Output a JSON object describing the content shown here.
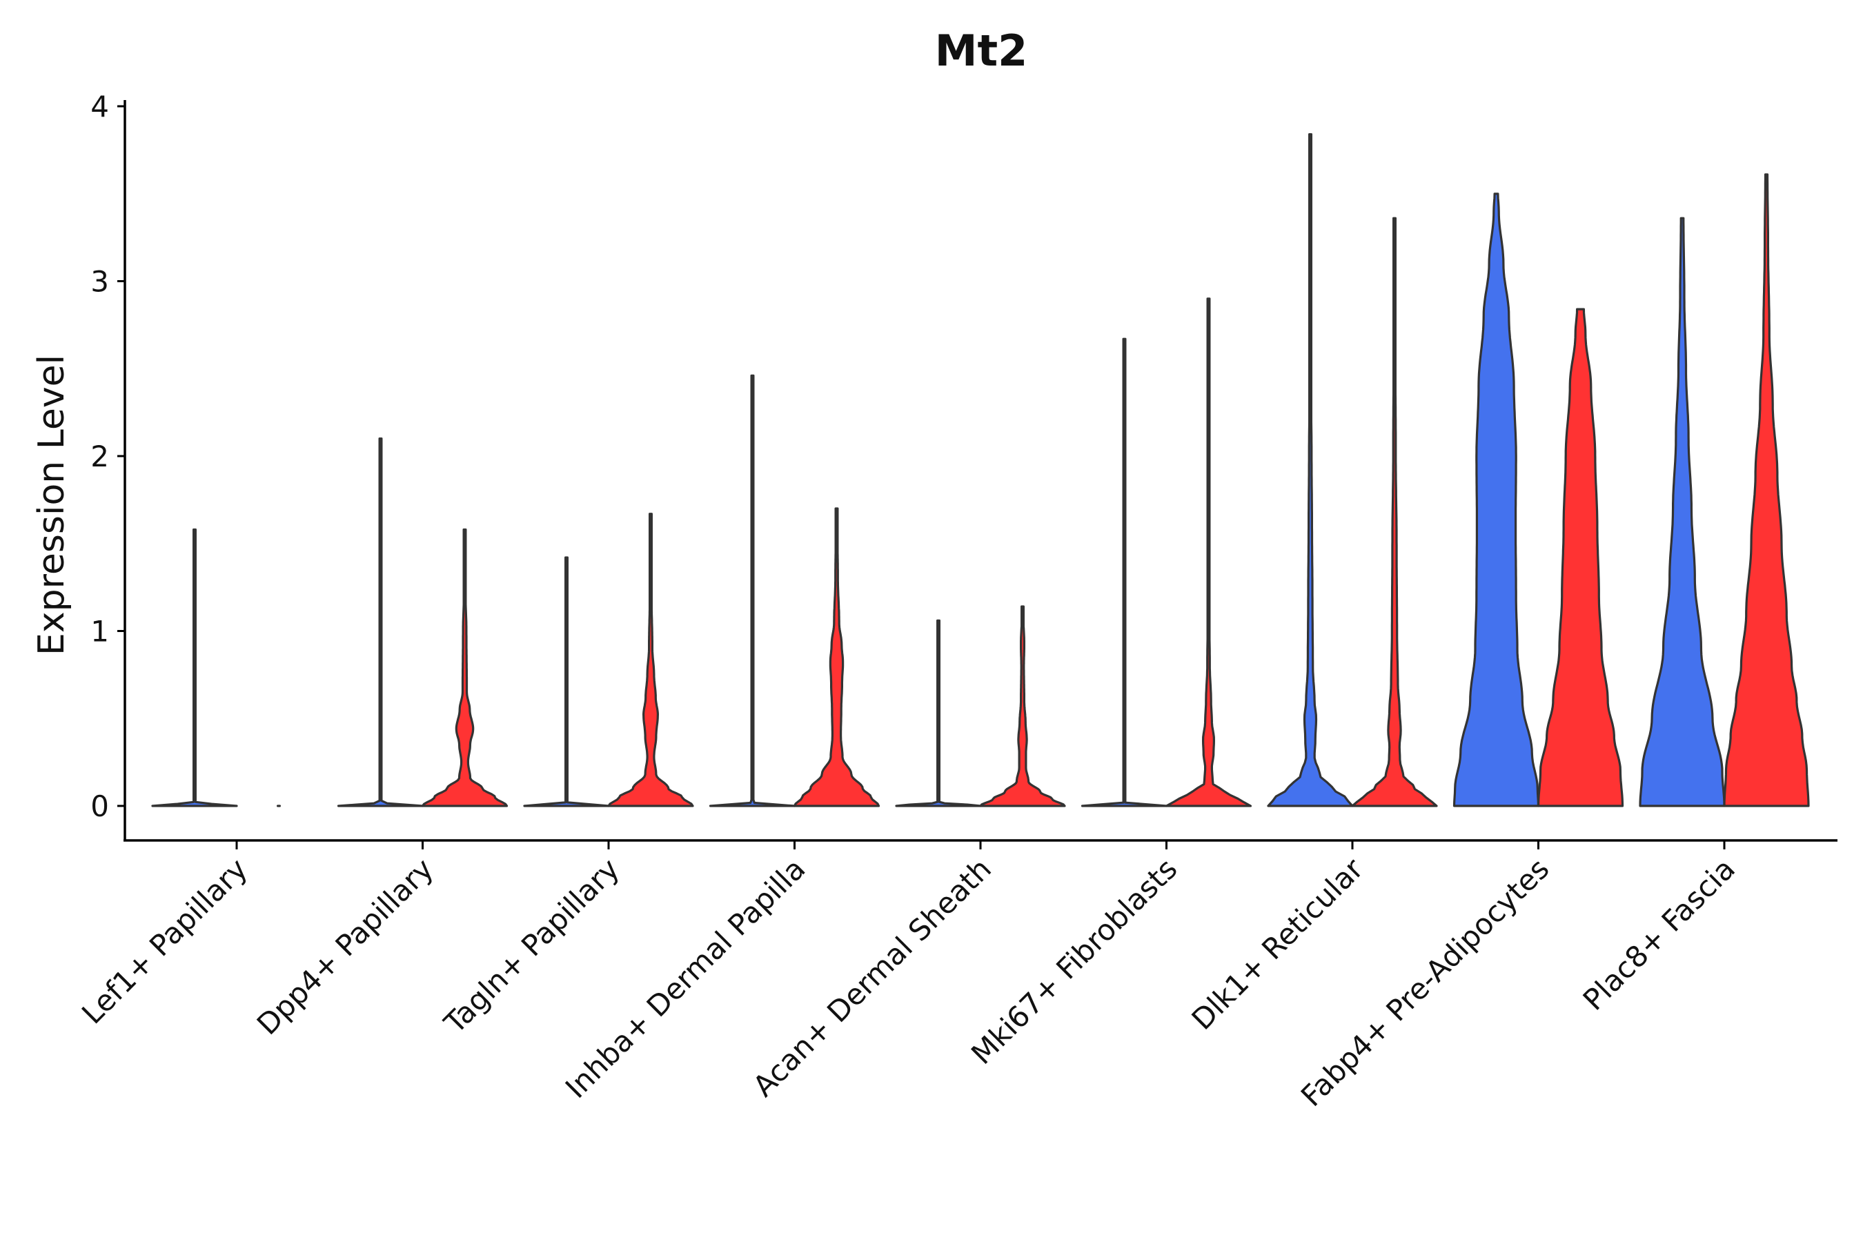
{
  "chart_data": {
    "type": "violin",
    "title": "Mt2",
    "xlabel": "",
    "ylabel": "Expression Level",
    "ylim": [
      -0.2,
      4.05
    ],
    "yticks": [
      0,
      1,
      2,
      3,
      4
    ],
    "grid": false,
    "legend": "none",
    "colors": {
      "blue": "#4472ee",
      "red": "#ff3333"
    },
    "categories": [
      "Lef1+ Papillary",
      "Dpp4+ Papillary",
      "Tagln+ Papillary",
      "Inhba+ Dermal Papilla",
      "Acan+ Dermal Sheath",
      "Mki67+ Fibroblasts",
      "Dlk1+ Reticular",
      "Fabp4+ Pre-Adipocytes",
      "Plac8+ Fascia"
    ],
    "groups": [
      {
        "category": "Lef1+ Papillary",
        "violins": [
          {
            "color": "blue",
            "max": 1.58,
            "profile": [
              [
                0,
                1.0
              ],
              [
                0.02,
                0.01
              ],
              [
                1.58,
                0.005
              ]
            ]
          },
          {
            "color": "red",
            "max": 0.0,
            "profile": [
              [
                0,
                0.02
              ]
            ]
          }
        ]
      },
      {
        "category": "Dpp4+ Papillary",
        "violins": [
          {
            "color": "blue",
            "max": 2.1,
            "profile": [
              [
                0,
                1.0
              ],
              [
                0.02,
                0.01
              ],
              [
                2.1,
                0.005
              ]
            ]
          },
          {
            "color": "red",
            "max": 1.58,
            "profile": [
              [
                0,
                1.0
              ],
              [
                0.05,
                0.72
              ],
              [
                0.1,
                0.42
              ],
              [
                0.16,
                0.13
              ],
              [
                0.25,
                0.08
              ],
              [
                0.35,
                0.13
              ],
              [
                0.44,
                0.2
              ],
              [
                0.55,
                0.12
              ],
              [
                0.65,
                0.05
              ],
              [
                1.0,
                0.04
              ],
              [
                1.2,
                0.02
              ],
              [
                1.58,
                0.005
              ]
            ]
          }
        ]
      },
      {
        "category": "Tagln+ Papillary",
        "violins": [
          {
            "color": "blue",
            "max": 1.42,
            "profile": [
              [
                0,
                1.0
              ],
              [
                0.02,
                0.01
              ],
              [
                1.42,
                0.005
              ]
            ]
          },
          {
            "color": "red",
            "max": 1.67,
            "profile": [
              [
                0,
                1.0
              ],
              [
                0.05,
                0.75
              ],
              [
                0.1,
                0.42
              ],
              [
                0.18,
                0.13
              ],
              [
                0.28,
                0.08
              ],
              [
                0.4,
                0.13
              ],
              [
                0.52,
                0.17
              ],
              [
                0.62,
                0.12
              ],
              [
                0.75,
                0.08
              ],
              [
                0.9,
                0.04
              ],
              [
                1.2,
                0.02
              ],
              [
                1.67,
                0.005
              ]
            ]
          }
        ]
      },
      {
        "category": "Inhba+ Dermal Papilla",
        "violins": [
          {
            "color": "blue",
            "max": 2.46,
            "profile": [
              [
                0,
                1.0
              ],
              [
                0.02,
                0.01
              ],
              [
                2.46,
                0.005
              ]
            ]
          },
          {
            "color": "red",
            "max": 1.7,
            "profile": [
              [
                0,
                1.0
              ],
              [
                0.05,
                0.82
              ],
              [
                0.1,
                0.62
              ],
              [
                0.18,
                0.35
              ],
              [
                0.28,
                0.14
              ],
              [
                0.4,
                0.1
              ],
              [
                0.55,
                0.11
              ],
              [
                0.7,
                0.13
              ],
              [
                0.82,
                0.15
              ],
              [
                0.92,
                0.12
              ],
              [
                1.05,
                0.06
              ],
              [
                1.3,
                0.03
              ],
              [
                1.7,
                0.005
              ]
            ]
          }
        ]
      },
      {
        "category": "Acan+ Dermal Sheath",
        "violins": [
          {
            "color": "blue",
            "max": 1.06,
            "profile": [
              [
                0,
                1.0
              ],
              [
                0.02,
                0.01
              ],
              [
                1.06,
                0.005
              ]
            ]
          },
          {
            "color": "red",
            "max": 1.14,
            "profile": [
              [
                0,
                1.0
              ],
              [
                0.04,
                0.7
              ],
              [
                0.08,
                0.42
              ],
              [
                0.14,
                0.14
              ],
              [
                0.22,
                0.08
              ],
              [
                0.3,
                0.08
              ],
              [
                0.38,
                0.1
              ],
              [
                0.48,
                0.07
              ],
              [
                0.6,
                0.04
              ],
              [
                0.8,
                0.03
              ],
              [
                0.92,
                0.04
              ],
              [
                1.14,
                0.005
              ]
            ]
          }
        ]
      },
      {
        "category": "Mki67+ Fibroblasts",
        "violins": [
          {
            "color": "blue",
            "max": 2.67,
            "profile": [
              [
                0,
                1.0
              ],
              [
                0.02,
                0.01
              ],
              [
                2.67,
                0.005
              ]
            ]
          },
          {
            "color": "red",
            "max": 2.9,
            "profile": [
              [
                0,
                1.0
              ],
              [
                0.04,
                0.7
              ],
              [
                0.08,
                0.38
              ],
              [
                0.13,
                0.1
              ],
              [
                0.22,
                0.08
              ],
              [
                0.3,
                0.12
              ],
              [
                0.38,
                0.13
              ],
              [
                0.48,
                0.08
              ],
              [
                0.6,
                0.06
              ],
              [
                0.8,
                0.03
              ],
              [
                1.2,
                0.01
              ],
              [
                2.9,
                0.005
              ]
            ]
          }
        ]
      },
      {
        "category": "Dlk1+ Reticular",
        "violins": [
          {
            "color": "blue",
            "max": 3.84,
            "profile": [
              [
                0,
                1.0
              ],
              [
                0.05,
                0.82
              ],
              [
                0.1,
                0.52
              ],
              [
                0.18,
                0.22
              ],
              [
                0.28,
                0.1
              ],
              [
                0.38,
                0.12
              ],
              [
                0.5,
                0.14
              ],
              [
                0.6,
                0.1
              ],
              [
                0.8,
                0.06
              ],
              [
                1.2,
                0.05
              ],
              [
                1.6,
                0.04
              ],
              [
                2.0,
                0.03
              ],
              [
                2.5,
                0.01
              ],
              [
                3.84,
                0.005
              ]
            ]
          },
          {
            "color": "red",
            "max": 3.36,
            "profile": [
              [
                0,
                1.0
              ],
              [
                0.05,
                0.75
              ],
              [
                0.1,
                0.48
              ],
              [
                0.18,
                0.2
              ],
              [
                0.26,
                0.13
              ],
              [
                0.34,
                0.12
              ],
              [
                0.43,
                0.15
              ],
              [
                0.55,
                0.12
              ],
              [
                0.7,
                0.08
              ],
              [
                1.0,
                0.06
              ],
              [
                1.5,
                0.05
              ],
              [
                2.0,
                0.03
              ],
              [
                2.6,
                0.02
              ],
              [
                3.36,
                0.005
              ]
            ]
          }
        ]
      },
      {
        "category": "Fabp4+ Pre-Adipocytes",
        "violins": [
          {
            "color": "blue",
            "max": 3.5,
            "profile": [
              [
                0,
                1.0
              ],
              [
                0.1,
                0.98
              ],
              [
                0.3,
                0.85
              ],
              [
                0.6,
                0.62
              ],
              [
                0.9,
                0.5
              ],
              [
                1.2,
                0.47
              ],
              [
                1.6,
                0.46
              ],
              [
                2.0,
                0.47
              ],
              [
                2.4,
                0.42
              ],
              [
                2.8,
                0.3
              ],
              [
                3.1,
                0.17
              ],
              [
                3.4,
                0.06
              ],
              [
                3.5,
                0.04
              ]
            ]
          },
          {
            "color": "red",
            "max": 2.84,
            "profile": [
              [
                0,
                1.0
              ],
              [
                0.2,
                0.95
              ],
              [
                0.4,
                0.8
              ],
              [
                0.6,
                0.65
              ],
              [
                0.9,
                0.5
              ],
              [
                1.2,
                0.44
              ],
              [
                1.6,
                0.4
              ],
              [
                2.0,
                0.35
              ],
              [
                2.4,
                0.25
              ],
              [
                2.7,
                0.12
              ],
              [
                2.84,
                0.08
              ]
            ]
          }
        ]
      },
      {
        "category": "Plac8+ Fascia",
        "violins": [
          {
            "color": "blue",
            "max": 3.36,
            "profile": [
              [
                0,
                1.0
              ],
              [
                0.2,
                0.95
              ],
              [
                0.5,
                0.72
              ],
              [
                0.9,
                0.45
              ],
              [
                1.3,
                0.3
              ],
              [
                1.7,
                0.22
              ],
              [
                2.1,
                0.15
              ],
              [
                2.5,
                0.09
              ],
              [
                2.9,
                0.05
              ],
              [
                3.36,
                0.03
              ]
            ]
          },
          {
            "color": "red",
            "max": 3.61,
            "profile": [
              [
                0,
                1.0
              ],
              [
                0.2,
                0.96
              ],
              [
                0.4,
                0.85
              ],
              [
                0.6,
                0.72
              ],
              [
                0.8,
                0.6
              ],
              [
                1.1,
                0.48
              ],
              [
                1.5,
                0.36
              ],
              [
                1.9,
                0.26
              ],
              [
                2.3,
                0.15
              ],
              [
                2.7,
                0.07
              ],
              [
                3.2,
                0.04
              ],
              [
                3.61,
                0.025
              ]
            ]
          }
        ]
      }
    ]
  }
}
